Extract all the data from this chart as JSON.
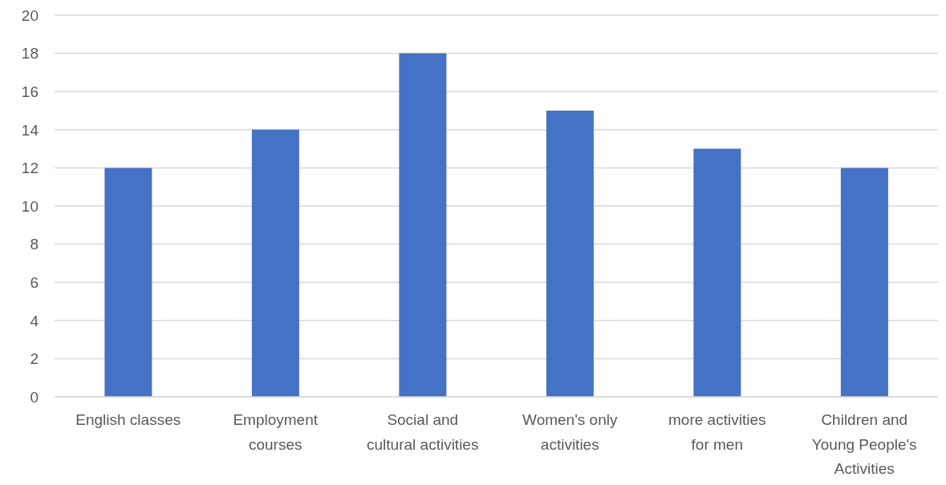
{
  "chart_data": {
    "type": "bar",
    "categories": [
      "English classes",
      "Employment courses",
      "Social and cultural activities",
      "Women's only activities",
      "more activities for men",
      "Children and Young People's Activities"
    ],
    "values": [
      12,
      14,
      18,
      15,
      13,
      12
    ],
    "color": "#4472c4",
    "ylim": [
      0,
      20
    ],
    "yticks": [
      0,
      2,
      4,
      6,
      8,
      10,
      12,
      14,
      16,
      18,
      20
    ],
    "grid": "y"
  }
}
